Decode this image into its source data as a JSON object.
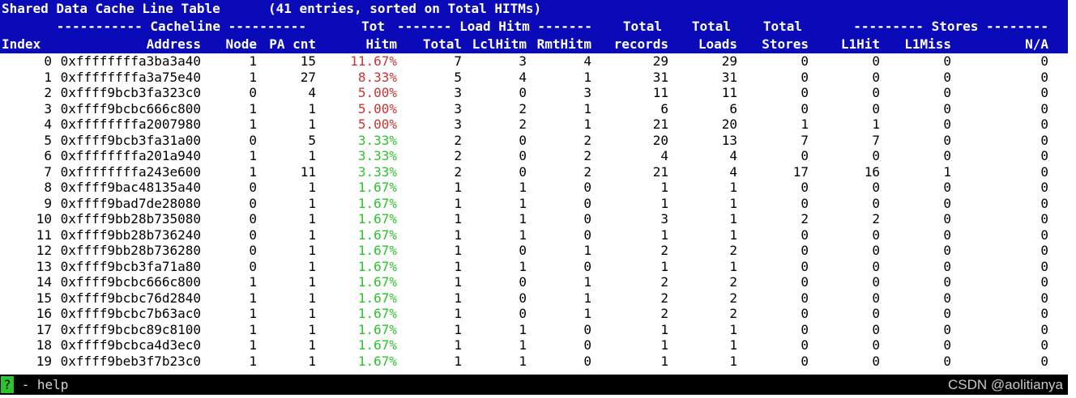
{
  "colors": {
    "page_bg": "#ffffff",
    "header_bg": "#0a0ab9",
    "header_fg": "#ffffff",
    "data_fg": "#000000",
    "hitm_high": "#cc3333",
    "hitm_low": "#2dc32d",
    "bar_bg": "#000000",
    "bar_fg": "#d6d6d6",
    "badge_bg": "#2dc32d",
    "badge_fg": "#000000",
    "watermark_fg": "#c9c9c9"
  },
  "terminal": {
    "title": "Shared Data Cache Line Table",
    "entries_summary": "(41 entries, sorted on Total HITMs)",
    "group_headers": {
      "cacheline": "----------- Cacheline ----------",
      "tot": "Tot",
      "load_hitm": "------- Load Hitm -------",
      "total_records": "Total",
      "total_loads": "Total",
      "total_stores": "Total",
      "stores": "--------- Stores --------"
    },
    "columns": [
      "Index",
      "Address",
      "Node",
      "PA cnt",
      "Hitm",
      "Total",
      "LclHitm",
      "RmtHitm",
      "records",
      "Loads",
      "Stores",
      "L1Hit",
      "L1Miss",
      "N/A"
    ],
    "rows": [
      {
        "index": "0",
        "address": "0xffffffffa3ba3a40",
        "node": "1",
        "pa_cnt": "15",
        "hitm": "11.67%",
        "hitm_level": "high",
        "total": "7",
        "lcl_hitm": "3",
        "rmt_hitm": "4",
        "records": "29",
        "loads": "29",
        "stores": "0",
        "l1hit": "0",
        "l1miss": "0",
        "na": "0"
      },
      {
        "index": "1",
        "address": "0xffffffffa3a75e40",
        "node": "1",
        "pa_cnt": "27",
        "hitm": "8.33%",
        "hitm_level": "high",
        "total": "5",
        "lcl_hitm": "4",
        "rmt_hitm": "1",
        "records": "31",
        "loads": "31",
        "stores": "0",
        "l1hit": "0",
        "l1miss": "0",
        "na": "0"
      },
      {
        "index": "2",
        "address": "0xffff9bcb3fa323c0",
        "node": "0",
        "pa_cnt": "4",
        "hitm": "5.00%",
        "hitm_level": "high",
        "total": "3",
        "lcl_hitm": "0",
        "rmt_hitm": "3",
        "records": "11",
        "loads": "11",
        "stores": "0",
        "l1hit": "0",
        "l1miss": "0",
        "na": "0"
      },
      {
        "index": "3",
        "address": "0xffff9bcbc666c800",
        "node": "1",
        "pa_cnt": "1",
        "hitm": "5.00%",
        "hitm_level": "high",
        "total": "3",
        "lcl_hitm": "2",
        "rmt_hitm": "1",
        "records": "6",
        "loads": "6",
        "stores": "0",
        "l1hit": "0",
        "l1miss": "0",
        "na": "0"
      },
      {
        "index": "4",
        "address": "0xffffffffa2007980",
        "node": "1",
        "pa_cnt": "1",
        "hitm": "5.00%",
        "hitm_level": "high",
        "total": "3",
        "lcl_hitm": "2",
        "rmt_hitm": "1",
        "records": "21",
        "loads": "20",
        "stores": "1",
        "l1hit": "1",
        "l1miss": "0",
        "na": "0"
      },
      {
        "index": "5",
        "address": "0xffff9bcb3fa31a00",
        "node": "0",
        "pa_cnt": "5",
        "hitm": "3.33%",
        "hitm_level": "low",
        "total": "2",
        "lcl_hitm": "0",
        "rmt_hitm": "2",
        "records": "20",
        "loads": "13",
        "stores": "7",
        "l1hit": "7",
        "l1miss": "0",
        "na": "0"
      },
      {
        "index": "6",
        "address": "0xffffffffa201a940",
        "node": "1",
        "pa_cnt": "1",
        "hitm": "3.33%",
        "hitm_level": "low",
        "total": "2",
        "lcl_hitm": "0",
        "rmt_hitm": "2",
        "records": "4",
        "loads": "4",
        "stores": "0",
        "l1hit": "0",
        "l1miss": "0",
        "na": "0"
      },
      {
        "index": "7",
        "address": "0xffffffffa243e600",
        "node": "1",
        "pa_cnt": "11",
        "hitm": "3.33%",
        "hitm_level": "low",
        "total": "2",
        "lcl_hitm": "0",
        "rmt_hitm": "2",
        "records": "21",
        "loads": "4",
        "stores": "17",
        "l1hit": "16",
        "l1miss": "1",
        "na": "0"
      },
      {
        "index": "8",
        "address": "0xffff9bac48135a40",
        "node": "0",
        "pa_cnt": "1",
        "hitm": "1.67%",
        "hitm_level": "low",
        "total": "1",
        "lcl_hitm": "1",
        "rmt_hitm": "0",
        "records": "1",
        "loads": "1",
        "stores": "0",
        "l1hit": "0",
        "l1miss": "0",
        "na": "0"
      },
      {
        "index": "9",
        "address": "0xffff9bad7de28080",
        "node": "0",
        "pa_cnt": "1",
        "hitm": "1.67%",
        "hitm_level": "low",
        "total": "1",
        "lcl_hitm": "1",
        "rmt_hitm": "0",
        "records": "1",
        "loads": "1",
        "stores": "0",
        "l1hit": "0",
        "l1miss": "0",
        "na": "0"
      },
      {
        "index": "10",
        "address": "0xffff9bb28b735080",
        "node": "0",
        "pa_cnt": "1",
        "hitm": "1.67%",
        "hitm_level": "low",
        "total": "1",
        "lcl_hitm": "1",
        "rmt_hitm": "0",
        "records": "3",
        "loads": "1",
        "stores": "2",
        "l1hit": "2",
        "l1miss": "0",
        "na": "0"
      },
      {
        "index": "11",
        "address": "0xffff9bb28b736240",
        "node": "0",
        "pa_cnt": "1",
        "hitm": "1.67%",
        "hitm_level": "low",
        "total": "1",
        "lcl_hitm": "1",
        "rmt_hitm": "0",
        "records": "1",
        "loads": "1",
        "stores": "0",
        "l1hit": "0",
        "l1miss": "0",
        "na": "0"
      },
      {
        "index": "12",
        "address": "0xffff9bb28b736280",
        "node": "0",
        "pa_cnt": "1",
        "hitm": "1.67%",
        "hitm_level": "low",
        "total": "1",
        "lcl_hitm": "0",
        "rmt_hitm": "1",
        "records": "2",
        "loads": "2",
        "stores": "0",
        "l1hit": "0",
        "l1miss": "0",
        "na": "0"
      },
      {
        "index": "13",
        "address": "0xffff9bcb3fa71a80",
        "node": "0",
        "pa_cnt": "1",
        "hitm": "1.67%",
        "hitm_level": "low",
        "total": "1",
        "lcl_hitm": "1",
        "rmt_hitm": "0",
        "records": "1",
        "loads": "1",
        "stores": "0",
        "l1hit": "0",
        "l1miss": "0",
        "na": "0"
      },
      {
        "index": "14",
        "address": "0xffff9bcbc666c800",
        "node": "1",
        "pa_cnt": "1",
        "hitm": "1.67%",
        "hitm_level": "low",
        "total": "1",
        "lcl_hitm": "0",
        "rmt_hitm": "1",
        "records": "2",
        "loads": "2",
        "stores": "0",
        "l1hit": "0",
        "l1miss": "0",
        "na": "0"
      },
      {
        "index": "15",
        "address": "0xffff9bcbc76d2840",
        "node": "1",
        "pa_cnt": "1",
        "hitm": "1.67%",
        "hitm_level": "low",
        "total": "1",
        "lcl_hitm": "0",
        "rmt_hitm": "1",
        "records": "2",
        "loads": "2",
        "stores": "0",
        "l1hit": "0",
        "l1miss": "0",
        "na": "0"
      },
      {
        "index": "16",
        "address": "0xffff9bcbc7b63ac0",
        "node": "1",
        "pa_cnt": "1",
        "hitm": "1.67%",
        "hitm_level": "low",
        "total": "1",
        "lcl_hitm": "0",
        "rmt_hitm": "1",
        "records": "2",
        "loads": "2",
        "stores": "0",
        "l1hit": "0",
        "l1miss": "0",
        "na": "0"
      },
      {
        "index": "17",
        "address": "0xffff9bcbc89c8100",
        "node": "1",
        "pa_cnt": "1",
        "hitm": "1.67%",
        "hitm_level": "low",
        "total": "1",
        "lcl_hitm": "1",
        "rmt_hitm": "0",
        "records": "1",
        "loads": "1",
        "stores": "0",
        "l1hit": "0",
        "l1miss": "0",
        "na": "0"
      },
      {
        "index": "18",
        "address": "0xffff9bcbca4d3ec0",
        "node": "1",
        "pa_cnt": "1",
        "hitm": "1.67%",
        "hitm_level": "low",
        "total": "1",
        "lcl_hitm": "1",
        "rmt_hitm": "0",
        "records": "1",
        "loads": "1",
        "stores": "0",
        "l1hit": "0",
        "l1miss": "0",
        "na": "0"
      },
      {
        "index": "19",
        "address": "0xffff9beb3f7b23c0",
        "node": "1",
        "pa_cnt": "1",
        "hitm": "1.67%",
        "hitm_level": "low",
        "total": "1",
        "lcl_hitm": "1",
        "rmt_hitm": "0",
        "records": "1",
        "loads": "1",
        "stores": "0",
        "l1hit": "0",
        "l1miss": "0",
        "na": "0"
      }
    ],
    "status_bar": {
      "key_hint": "?",
      "key_label": "- help"
    },
    "watermark": "CSDN @aolitianya"
  }
}
